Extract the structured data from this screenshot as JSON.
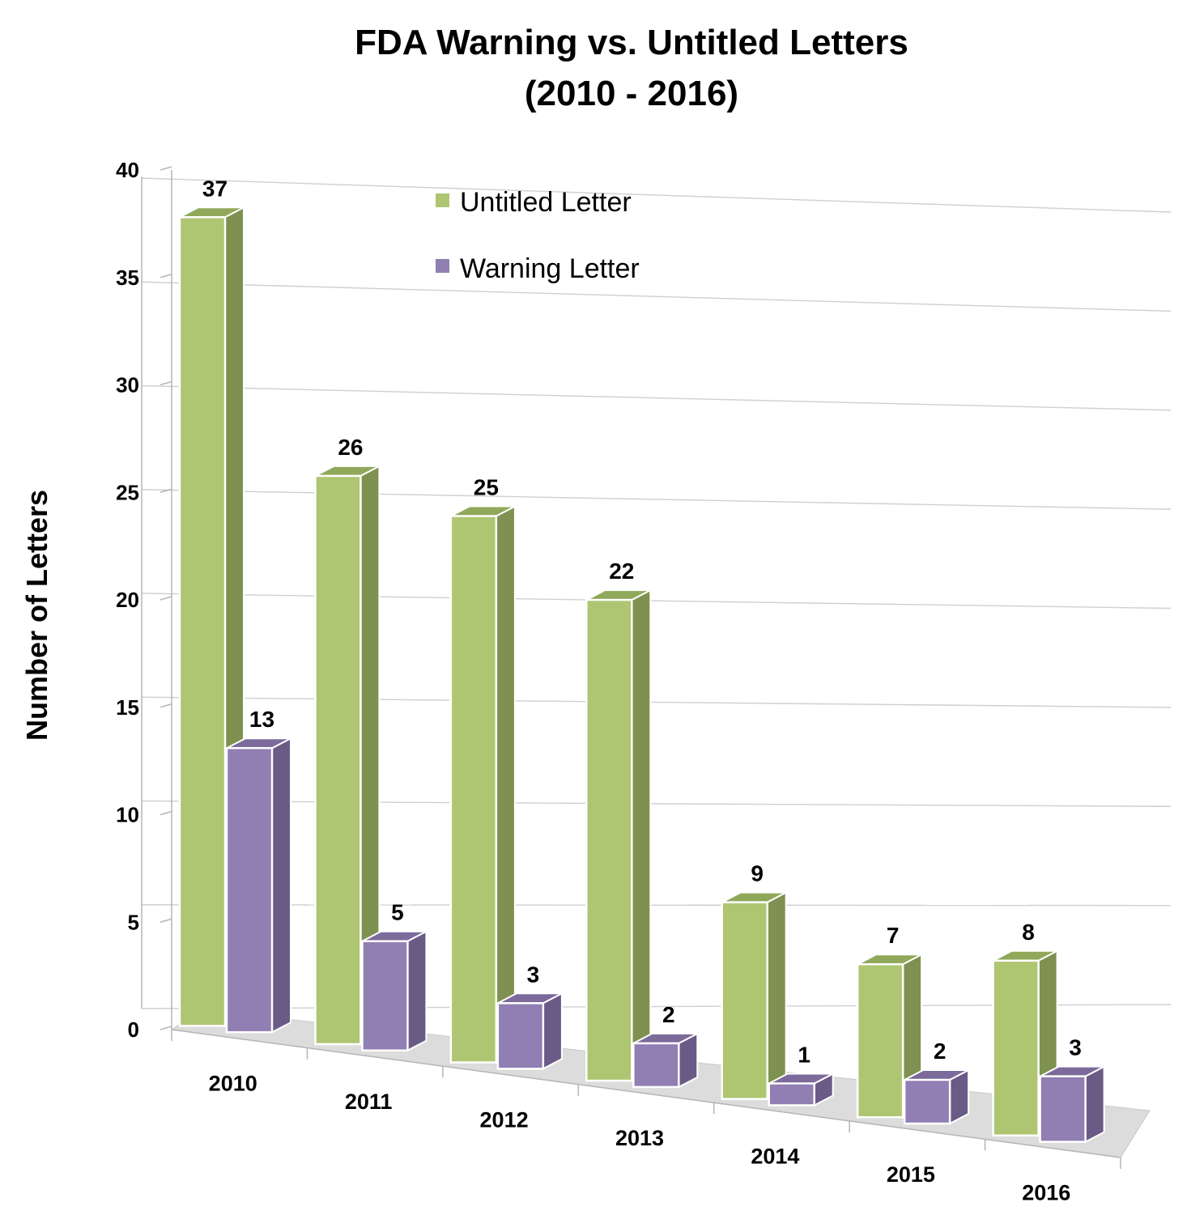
{
  "chart_data": {
    "type": "bar",
    "title": "FDA Warning vs. Untitled Letters",
    "subtitle": "(2010 - 2016)",
    "xlabel": "",
    "ylabel": "Number of Letters",
    "ylim": [
      0,
      40
    ],
    "yticks": [
      "0",
      "5",
      "10",
      "15",
      "20",
      "25",
      "30",
      "35",
      "40"
    ],
    "categories": [
      "2010",
      "2011",
      "2012",
      "2013",
      "2014",
      "2015",
      "2016"
    ],
    "series": [
      {
        "name": "Untitled Letter",
        "values": [
          37,
          26,
          25,
          22,
          9,
          7,
          8
        ],
        "color": "#AEC672",
        "side_color": "#7E9150",
        "top_color": "#8FA85A"
      },
      {
        "name": "Warning Letter",
        "values": [
          13,
          5,
          3,
          2,
          1,
          2,
          3
        ],
        "color": "#917EB2",
        "side_color": "#6A5A86",
        "top_color": "#7C6A9B"
      }
    ],
    "grid": true,
    "legend_position": "top-center",
    "style": "3d-clustered-column"
  }
}
